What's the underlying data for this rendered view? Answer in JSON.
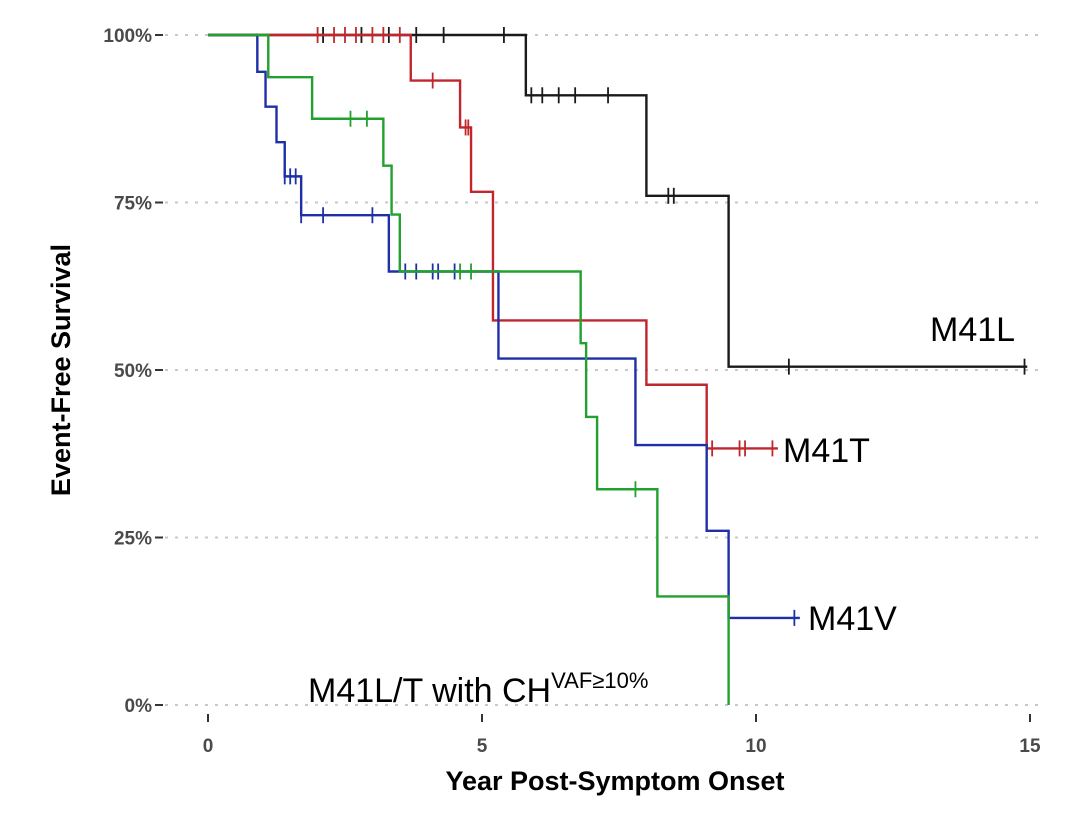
{
  "chart_data": {
    "type": "line",
    "subtype": "kaplan-meier step",
    "xlabel": "Year Post-Symptom Onset",
    "ylabel": "Event-Free Survival",
    "xlim": [
      0,
      15
    ],
    "ylim": [
      0,
      1
    ],
    "xticks": [
      {
        "value": 0,
        "label": "0"
      },
      {
        "value": 5,
        "label": "5"
      },
      {
        "value": 10,
        "label": "10"
      },
      {
        "value": 15,
        "label": "15"
      }
    ],
    "yticks": [
      {
        "value": 0,
        "label": "0%"
      },
      {
        "value": 0.25,
        "label": "25%"
      },
      {
        "value": 0.5,
        "label": "50%"
      },
      {
        "value": 0.75,
        "label": "75%"
      },
      {
        "value": 1,
        "label": "100%"
      }
    ],
    "grid": "horizontal dotted",
    "series": [
      {
        "name": "M41L",
        "label": "M41L",
        "color": "#1a1a1a",
        "steps": [
          [
            0,
            1.0
          ],
          [
            5.8,
            0.91
          ],
          [
            8.0,
            0.76
          ],
          [
            9.5,
            0.505
          ]
        ],
        "end": 14.95,
        "censored": [
          2.1,
          2.8,
          3.3,
          3.8,
          4.3,
          5.4,
          5.9,
          6.1,
          6.4,
          6.7,
          7.3,
          8.4,
          8.5,
          10.6,
          14.9
        ]
      },
      {
        "name": "M41T",
        "label": "M41T",
        "color": "#c0272d",
        "steps": [
          [
            0,
            1.0
          ],
          [
            3.7,
            0.932
          ],
          [
            4.6,
            0.862
          ],
          [
            4.8,
            0.766
          ],
          [
            5.2,
            0.574
          ],
          [
            8.0,
            0.478
          ],
          [
            9.1,
            0.383
          ]
        ],
        "end": 10.4,
        "censored": [
          2.0,
          2.3,
          2.5,
          2.7,
          3.0,
          3.2,
          3.5,
          4.1,
          4.7,
          4.75,
          9.2,
          9.7,
          9.8,
          10.3
        ]
      },
      {
        "name": "M41V",
        "label": "M41V",
        "color": "#1f2fa8",
        "steps": [
          [
            0,
            1.0
          ],
          [
            0.9,
            0.945
          ],
          [
            1.05,
            0.893
          ],
          [
            1.25,
            0.84
          ],
          [
            1.4,
            0.789
          ],
          [
            1.7,
            0.731
          ],
          [
            3.3,
            0.647
          ],
          [
            5.3,
            0.517
          ],
          [
            7.8,
            0.388
          ],
          [
            9.1,
            0.26
          ],
          [
            9.5,
            0.13
          ]
        ],
        "end": 10.8,
        "censored": [
          1.4,
          1.5,
          1.6,
          1.7,
          2.1,
          3.0,
          3.6,
          3.8,
          4.1,
          4.2,
          4.5,
          10.7
        ]
      },
      {
        "name": "M41L/T with CH VAF≥10%",
        "label": "M41L/T with CH",
        "label_sup": "VAF≥10%",
        "color": "#22a030",
        "steps": [
          [
            0,
            1.0
          ],
          [
            1.1,
            0.937
          ],
          [
            1.9,
            0.875
          ],
          [
            3.2,
            0.805
          ],
          [
            3.35,
            0.732
          ],
          [
            3.5,
            0.647
          ],
          [
            6.8,
            0.54
          ],
          [
            6.9,
            0.43
          ],
          [
            7.1,
            0.322
          ],
          [
            8.2,
            0.162
          ],
          [
            9.5,
            0.0
          ]
        ],
        "end": 9.5,
        "censored": [
          2.6,
          2.9,
          4.6,
          4.8,
          7.8
        ]
      }
    ]
  }
}
